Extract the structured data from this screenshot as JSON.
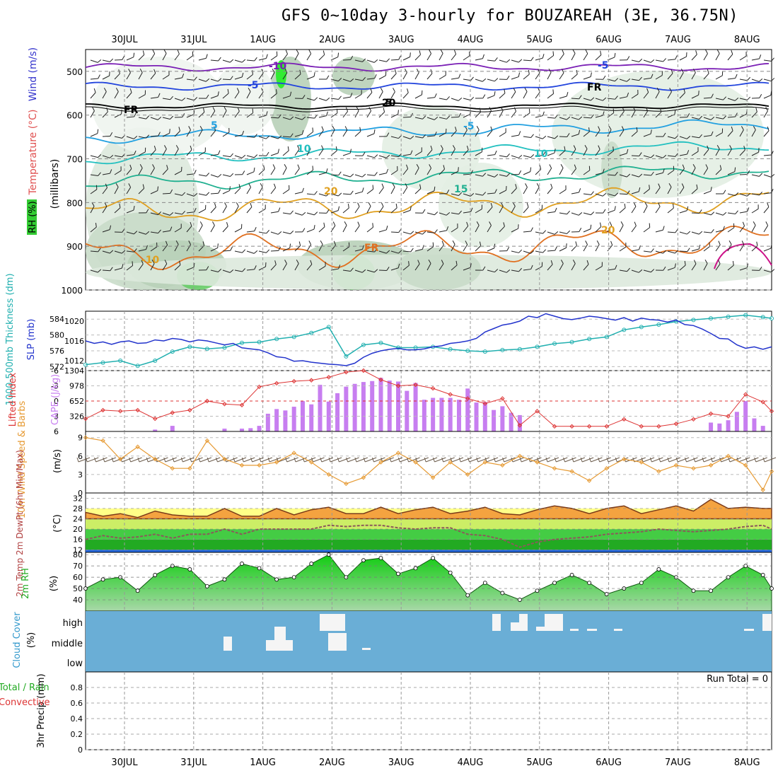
{
  "title": "GFS 0~10day 3-hourly for BOUZAREAH (3E, 36.75N)",
  "dates": [
    "30JUL",
    "31JUL",
    "1AUG",
    "2AUG",
    "3AUG",
    "4AUG",
    "5AUG",
    "6AUG",
    "7AUG",
    "8AUG"
  ],
  "panels": {
    "upper": {
      "label_rh": "RH (%)",
      "label_temp": "Temperature (°C)",
      "label_wind": "Wind (m/s)",
      "label_mb": "(millibars)",
      "yticks": [
        "500",
        "600",
        "700",
        "800",
        "900",
        "1000"
      ],
      "contour_labels": [
        "-10",
        "-5",
        "FR",
        "-5",
        "5",
        "10",
        "20",
        "15",
        "10",
        "20",
        "-5",
        "FR",
        "5",
        "-10",
        "FR",
        "20"
      ]
    },
    "slp": {
      "label_thk": "1000-500mb Thickness (dm)",
      "label_slp": "SLP (mb)",
      "yticks_left": [
        "584",
        "580",
        "576",
        "572"
      ],
      "yticks_right": [
        "1020",
        "1016",
        "1012"
      ]
    },
    "cape": {
      "label_li": "Lifted Index",
      "label_cape": "CAPE (J/kg)",
      "yticks_left": [
        "-6",
        "-3",
        "0",
        "3",
        "6"
      ],
      "yticks_right": [
        "1304",
        "978",
        "652",
        "326"
      ]
    },
    "wind10": {
      "label": "10m Wind Speed & Barbs",
      "unit": "(m/s)",
      "yticks": [
        "9",
        "6",
        "3",
        "0"
      ]
    },
    "temp2m": {
      "label": "2m Temp 2m DewPt (6hr Min/Max)",
      "unit": "(°C)",
      "yticks": [
        "32",
        "28",
        "24",
        "20",
        "16",
        "12"
      ]
    },
    "rh2m": {
      "label": "2m RH",
      "unit": "(%)",
      "yticks": [
        "80",
        "70",
        "60",
        "50",
        "40"
      ]
    },
    "cloud": {
      "label": "Cloud Cover",
      "unit": "(%)",
      "levels": [
        "high",
        "middle",
        "low"
      ]
    },
    "precip": {
      "label_total": "Total / Rain",
      "label_conv": "Convective",
      "label": "3hr Precip (mm)",
      "yticks": [
        "0.8",
        "0.6",
        "0.4",
        "0.2",
        "0"
      ],
      "run_total": "Run Total = 0"
    }
  },
  "colors": {
    "slp": "#2233cc",
    "thickness": "#22b0b0",
    "lifted_index": "#dd3333",
    "cape": "#c77ef0",
    "wind": "#e69a33",
    "temp_fill": "#f4a340",
    "dewpoint": "#8b5a5a",
    "rh_fill": "#22cc22",
    "cloud_bg": "#6aaed6",
    "rh_label": "#22cc22",
    "temp_label": "#e05050",
    "wind_label": "#3333cc"
  },
  "chart_data": [
    {
      "type": "line",
      "title": "SLP (mb)",
      "x": [
        0,
        3,
        6,
        9,
        12,
        15,
        18,
        21,
        24,
        27,
        30,
        33,
        36,
        39,
        42,
        45,
        48,
        51,
        54,
        57,
        60,
        63,
        66,
        69,
        72,
        75,
        78,
        81,
        84,
        87,
        90,
        93,
        96,
        99,
        102,
        105,
        108,
        111,
        114,
        117,
        120,
        123,
        126,
        129,
        132,
        135,
        138,
        141,
        144,
        147,
        150,
        153,
        156,
        159,
        162,
        165,
        168,
        171,
        174,
        177,
        180,
        183,
        186,
        189,
        192,
        195,
        198,
        201,
        204,
        207,
        210,
        213,
        216,
        219,
        222,
        225,
        228,
        231,
        234,
        237
      ],
      "values": [
        1016,
        1015.5,
        1015.8,
        1015.3,
        1015.8,
        1016,
        1015.5,
        1015.6,
        1016.2,
        1016,
        1016.5,
        1016.3,
        1015.8,
        1016.2,
        1016,
        1015.6,
        1015.2,
        1015.5,
        1014.6,
        1014.4,
        1014.2,
        1013.6,
        1012.8,
        1012.6,
        1011.9,
        1012,
        1011.7,
        1011.5,
        1011.3,
        1011.2,
        1011,
        1011.5,
        1012.7,
        1013.5,
        1014,
        1014.3,
        1014.5,
        1014.2,
        1014.2,
        1014.4,
        1014.8,
        1015,
        1015.5,
        1015.7,
        1016,
        1016.5,
        1017.8,
        1018.5,
        1019.2,
        1019.5,
        1020,
        1021,
        1020.7,
        1021.5,
        1021,
        1020.5,
        1020.3,
        1020.6,
        1021,
        1020.8,
        1020.5,
        1020.2,
        1020.7,
        1020,
        1020.6,
        1020.3,
        1020.2,
        1019.8,
        1020.2,
        1019.3,
        1019.1,
        1018.4,
        1017.5,
        1016.5,
        1016.4,
        1015.2,
        1014.5,
        1014.8,
        1014.3,
        1014.8
      ],
      "ylim": [
        1010,
        1022
      ]
    },
    {
      "type": "line",
      "title": "1000-500mb Thickness (dm)",
      "x": [
        0,
        6,
        12,
        18,
        24,
        30,
        36,
        42,
        48,
        54,
        60,
        66,
        72,
        78,
        84,
        90,
        96,
        102,
        108,
        114,
        120,
        126,
        132,
        138,
        144,
        150,
        156,
        162,
        168,
        174,
        180,
        186,
        192,
        198,
        204,
        210,
        216,
        222,
        228,
        234,
        237
      ],
      "values": [
        572.5,
        573,
        573.5,
        572.2,
        573.5,
        575.8,
        577,
        576.5,
        576.8,
        578,
        578.2,
        579,
        579.5,
        580.5,
        582,
        574.6,
        577.5,
        578,
        576.8,
        576.8,
        577,
        576.4,
        576,
        575.8,
        576.2,
        576.4,
        577,
        577.8,
        578.2,
        579,
        579.5,
        581.3,
        582,
        582.6,
        583.4,
        583.8,
        584.2,
        584.6,
        585,
        584.5,
        584.2
      ],
      "ylim": [
        571,
        586
      ]
    },
    {
      "type": "bar",
      "title": "CAPE (J/kg)",
      "x": [
        24,
        30,
        48,
        54,
        57,
        60,
        63,
        66,
        69,
        72,
        75,
        78,
        81,
        84,
        87,
        90,
        93,
        96,
        99,
        102,
        105,
        108,
        111,
        114,
        117,
        120,
        123,
        126,
        129,
        132,
        135,
        138,
        141,
        144,
        147,
        150,
        216,
        219,
        222,
        225,
        228,
        231,
        234
      ],
      "values": [
        40,
        120,
        60,
        60,
        70,
        120,
        380,
        480,
        450,
        530,
        650,
        580,
        1000,
        640,
        820,
        960,
        1020,
        1060,
        1080,
        1150,
        1090,
        1070,
        870,
        1040,
        680,
        720,
        720,
        720,
        680,
        920,
        620,
        630,
        460,
        540,
        400,
        350,
        190,
        170,
        240,
        420,
        650,
        280,
        120
      ],
      "ylim": [
        0,
        1304
      ]
    },
    {
      "type": "line",
      "title": "Lifted Index",
      "x": [
        0,
        6,
        12,
        18,
        24,
        30,
        36,
        42,
        48,
        54,
        60,
        66,
        72,
        78,
        84,
        90,
        96,
        102,
        108,
        114,
        120,
        126,
        132,
        138,
        144,
        150,
        156,
        162,
        168,
        174,
        180,
        186,
        192,
        198,
        204,
        210,
        216,
        222,
        228,
        234,
        237
      ],
      "values": [
        3.5,
        1.8,
        2,
        1.8,
        3.5,
        2.3,
        1.8,
        0,
        0.6,
        0.8,
        -2.8,
        -3.5,
        -3.9,
        -4.1,
        -4.7,
        -5.7,
        -6,
        -4.2,
        -3,
        -3.2,
        -2.5,
        -1.3,
        -0.5,
        0.5,
        -0.5,
        4.8,
        2,
        5,
        5,
        5,
        5,
        3.6,
        5,
        5,
        4.5,
        3.6,
        2.5,
        3,
        -1.3,
        0.2,
        2
      ],
      "ylim": [
        6,
        -6
      ]
    },
    {
      "type": "line",
      "title": "10m Wind Speed",
      "x": [
        0,
        6,
        12,
        18,
        24,
        30,
        36,
        42,
        48,
        54,
        60,
        66,
        72,
        78,
        84,
        90,
        96,
        102,
        108,
        114,
        120,
        126,
        132,
        138,
        144,
        150,
        156,
        162,
        168,
        174,
        180,
        186,
        192,
        198,
        204,
        210,
        216,
        222,
        228,
        234,
        237
      ],
      "values": [
        9,
        8.5,
        5.5,
        7.5,
        5.5,
        4,
        4,
        8.5,
        5.5,
        4.5,
        4.5,
        5,
        6.5,
        5,
        3,
        1.5,
        2.5,
        5,
        6.5,
        5,
        2.5,
        5,
        3,
        5,
        4.5,
        6,
        5,
        4,
        3.5,
        2,
        4,
        5.5,
        5,
        3.5,
        4.5,
        4,
        4.5,
        6,
        4.5,
        0.5,
        3.5
      ],
      "ylim": [
        0,
        10
      ]
    },
    {
      "type": "area",
      "title": "2m Temp",
      "x": [
        0,
        6,
        12,
        18,
        24,
        30,
        36,
        42,
        48,
        54,
        60,
        66,
        72,
        78,
        84,
        90,
        96,
        102,
        108,
        114,
        120,
        126,
        132,
        138,
        144,
        150,
        156,
        162,
        168,
        174,
        180,
        186,
        192,
        198,
        204,
        210,
        216,
        222,
        228,
        234,
        237
      ],
      "values": [
        26.5,
        25,
        26,
        24.5,
        27,
        25.5,
        25,
        25,
        28,
        25,
        25,
        28,
        25.5,
        27.5,
        28.5,
        26,
        26,
        28.5,
        26,
        27.5,
        28.5,
        26,
        27,
        28.5,
        26,
        25.5,
        27.5,
        29,
        28,
        26,
        28,
        29,
        26,
        27.5,
        29,
        27,
        31.5,
        28,
        28.5,
        28,
        28
      ],
      "ylim": [
        11,
        34
      ]
    },
    {
      "type": "line",
      "title": "2m DewPt",
      "x": [
        0,
        6,
        12,
        18,
        24,
        30,
        36,
        42,
        48,
        54,
        60,
        66,
        72,
        78,
        84,
        90,
        96,
        102,
        108,
        114,
        120,
        126,
        132,
        138,
        144,
        150,
        156,
        162,
        168,
        174,
        180,
        186,
        192,
        198,
        204,
        210,
        216,
        222,
        228,
        234,
        237
      ],
      "values": [
        16,
        17.5,
        16.5,
        17,
        18,
        16.5,
        18,
        18,
        20,
        18,
        20,
        20,
        20,
        20,
        21.5,
        21,
        21.5,
        21.5,
        20.5,
        20,
        20.5,
        20.5,
        18,
        17.5,
        16,
        13,
        15,
        16,
        16.5,
        17,
        18,
        18.5,
        19,
        20,
        19.5,
        19,
        19.5,
        20,
        21,
        21.5,
        20
      ],
      "ylim": [
        11,
        34
      ]
    },
    {
      "type": "area",
      "title": "2m RH",
      "x": [
        0,
        6,
        12,
        18,
        24,
        30,
        36,
        42,
        48,
        54,
        60,
        66,
        72,
        78,
        84,
        90,
        96,
        102,
        108,
        114,
        120,
        126,
        132,
        138,
        144,
        150,
        156,
        162,
        168,
        174,
        180,
        186,
        192,
        198,
        204,
        210,
        216,
        222,
        228,
        234,
        237
      ],
      "values": [
        50,
        58,
        60,
        48,
        62,
        70,
        67,
        52,
        58,
        72,
        68,
        58,
        60,
        72,
        80,
        60,
        75,
        77,
        63,
        68,
        77,
        64,
        44,
        55,
        46,
        40,
        48,
        55,
        62,
        55,
        45,
        50,
        55,
        67,
        60,
        48,
        48,
        60,
        70,
        62,
        50
      ],
      "ylim": [
        30,
        82
      ]
    },
    {
      "type": "table",
      "title": "Cloud Cover",
      "categories": [
        "high",
        "middle",
        "low"
      ],
      "note": "mostly clear; scattered middle cloud 31JUL-2AUG, high cloud 2AUG, 4AUG-6AUG, 8AUG"
    },
    {
      "type": "bar",
      "title": "3hr Precip (mm)",
      "values": [],
      "ylim": [
        0,
        1
      ]
    }
  ]
}
